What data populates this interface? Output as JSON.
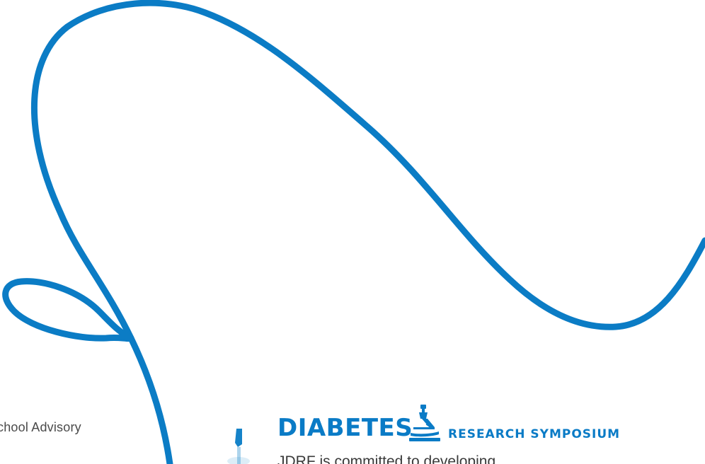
{
  "colors": {
    "brand_blue": "#0a7bc6",
    "swirl_blue": "#0b7cc5",
    "text_gray": "#4a4a4a",
    "figure_blue": "#1583c9"
  },
  "left_text": "chool Advisory",
  "banner": {
    "title": "DIABETES",
    "subtitle": "RESEARCH SYMPOSIUM",
    "icon": "microscope-icon"
  },
  "body_text": "JDRF is committed to developing",
  "figure": {
    "icon": "blue-figure-icon"
  }
}
